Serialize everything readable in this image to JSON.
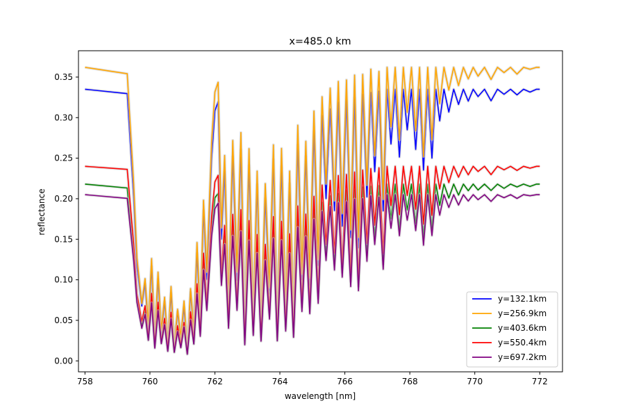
{
  "chart_data": {
    "type": "line",
    "title": "x=485.0 km",
    "xlabel": "wavelength [nm]",
    "ylabel": "reflectance",
    "xlim": [
      757.8,
      772.7
    ],
    "ylim": [
      -0.0135,
      0.3825
    ],
    "xticks": [
      758,
      760,
      762,
      764,
      766,
      768,
      770,
      772
    ],
    "xtick_labels": [
      "758",
      "760",
      "762",
      "764",
      "766",
      "768",
      "770",
      "772"
    ],
    "yticks": [
      0.0,
      0.05,
      0.1,
      0.15,
      0.2,
      0.25,
      0.3,
      0.35
    ],
    "ytick_labels": [
      "0.00",
      "0.05",
      "0.10",
      "0.15",
      "0.20",
      "0.25",
      "0.30",
      "0.35"
    ],
    "legend_position": "lower-right",
    "grid": false,
    "shaded_band": true,
    "series": [
      {
        "name": "y=132.1km",
        "color": "#0000ff",
        "continuum": 0.335
      },
      {
        "name": "y=256.9km",
        "color": "#ffa500",
        "continuum": 0.362
      },
      {
        "name": "y=403.6km",
        "color": "#008000",
        "continuum": 0.218
      },
      {
        "name": "y=550.4km",
        "color": "#ff0000",
        "continuum": 0.24
      },
      {
        "name": "y=697.2km",
        "color": "#800080",
        "continuum": 0.205
      }
    ],
    "band_profile": {
      "x": [
        758.0,
        759.3,
        759.5,
        759.6,
        759.75,
        759.85,
        759.95,
        760.05,
        760.15,
        760.25,
        760.35,
        760.45,
        760.55,
        760.65,
        760.75,
        760.85,
        760.95,
        761.05,
        761.15,
        761.25,
        761.35,
        761.45,
        761.55,
        761.65,
        761.75,
        761.9,
        762.0,
        762.1,
        762.2,
        762.3,
        762.42,
        762.55,
        762.68,
        762.8,
        762.92,
        763.05,
        763.18,
        763.3,
        763.42,
        763.55,
        763.68,
        763.8,
        763.92,
        764.05,
        764.18,
        764.3,
        764.42,
        764.55,
        764.68,
        764.8,
        764.92,
        765.05,
        765.18,
        765.3,
        765.42,
        765.55,
        765.68,
        765.8,
        765.92,
        766.05,
        766.18,
        766.3,
        766.42,
        766.55,
        766.68,
        766.8,
        766.92,
        767.05,
        767.18,
        767.3,
        767.42,
        767.55,
        767.68,
        767.8,
        767.92,
        768.05,
        768.18,
        768.3,
        768.42,
        768.55,
        768.68,
        768.8,
        768.92,
        769.05,
        769.2,
        769.35,
        769.5,
        769.65,
        769.8,
        769.95,
        770.1,
        770.3,
        770.5,
        770.7,
        770.9,
        771.1,
        771.3,
        771.5,
        771.7,
        771.9,
        772.0
      ],
      "ratio": [
        1.0,
        0.98,
        0.6,
        0.35,
        0.2,
        0.28,
        0.12,
        0.35,
        0.08,
        0.3,
        0.1,
        0.22,
        0.06,
        0.25,
        0.05,
        0.18,
        0.08,
        0.2,
        0.04,
        0.25,
        0.1,
        0.4,
        0.15,
        0.55,
        0.3,
        0.75,
        0.92,
        0.95,
        0.45,
        0.7,
        0.2,
        0.75,
        0.3,
        0.78,
        0.1,
        0.72,
        0.15,
        0.65,
        0.12,
        0.6,
        0.25,
        0.74,
        0.12,
        0.72,
        0.18,
        0.65,
        0.14,
        0.8,
        0.3,
        0.75,
        0.28,
        0.85,
        0.35,
        0.9,
        0.6,
        0.93,
        0.55,
        0.95,
        0.5,
        0.96,
        0.45,
        0.97,
        0.42,
        0.98,
        0.6,
        0.99,
        0.7,
        0.99,
        0.55,
        1.0,
        0.8,
        1.0,
        0.75,
        1.0,
        0.85,
        1.0,
        0.78,
        1.0,
        0.7,
        1.0,
        0.75,
        1.0,
        0.88,
        1.0,
        0.92,
        1.0,
        0.94,
        1.0,
        0.96,
        1.0,
        0.97,
        1.0,
        0.96,
        1.0,
        0.98,
        1.0,
        0.98,
        1.0,
        0.99,
        1.0,
        1.0
      ]
    }
  }
}
